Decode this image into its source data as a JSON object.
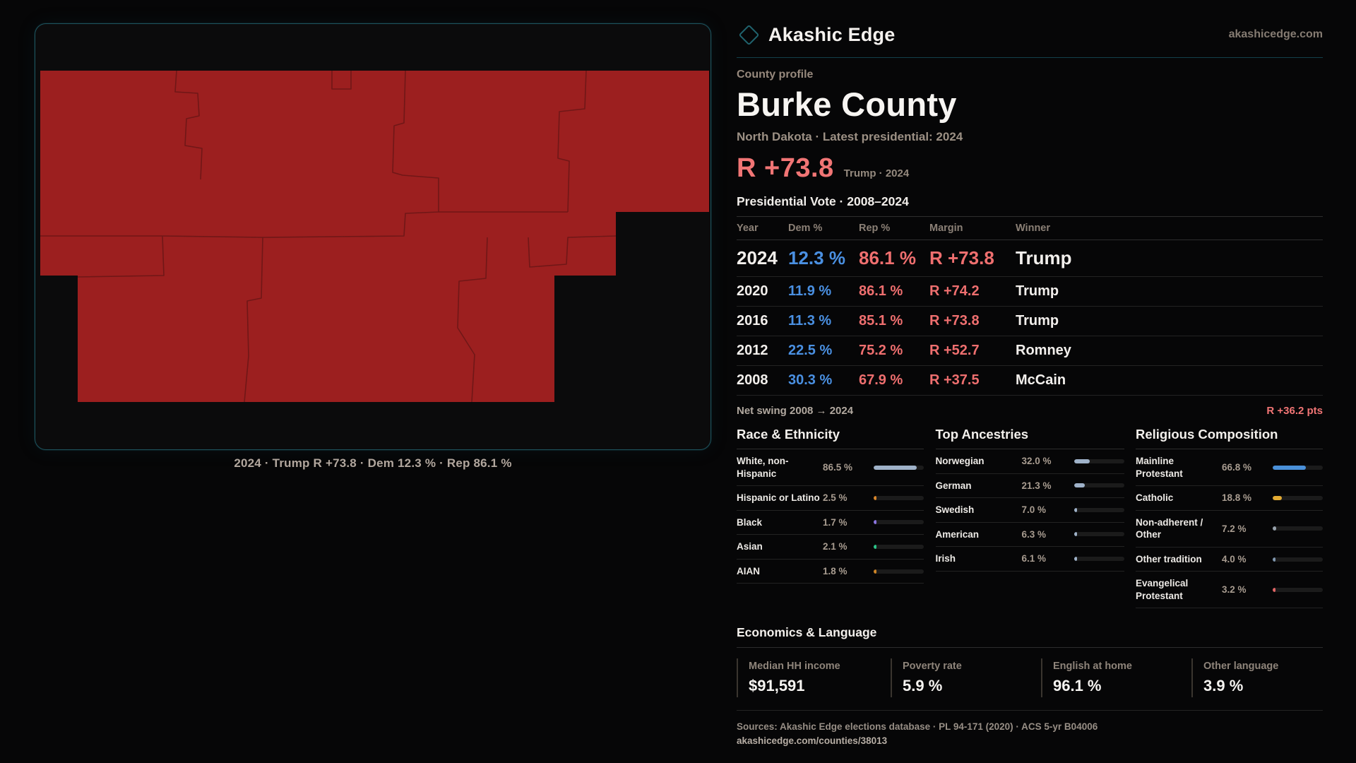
{
  "brand": {
    "name": "Akashic Edge",
    "domain": "akashicedge.com"
  },
  "header": {
    "eyebrow": "County profile",
    "title": "Burke County",
    "subtitle": "North Dakota · Latest presidential: 2024"
  },
  "headline": {
    "margin": "R +73.8",
    "note": "Trump · 2024"
  },
  "map": {
    "caption": "2024 · Trump R +73.8 · Dem 12.3 % · Rep 86.1 %",
    "fill_color": "#9c1f1f",
    "boundary_color": "#701717",
    "panel_border_color": "#1e525c"
  },
  "vote_table": {
    "title": "Presidential Vote · 2008–2024",
    "columns": [
      "Year",
      "Dem %",
      "Rep %",
      "Margin",
      "Winner"
    ],
    "rows": [
      {
        "year": "2024",
        "dem": "12.3 %",
        "rep": "86.1 %",
        "margin": "R +73.8",
        "winner": "Trump"
      },
      {
        "year": "2020",
        "dem": "11.9 %",
        "rep": "86.1 %",
        "margin": "R +74.2",
        "winner": "Trump"
      },
      {
        "year": "2016",
        "dem": "11.3 %",
        "rep": "85.1 %",
        "margin": "R +73.8",
        "winner": "Trump"
      },
      {
        "year": "2012",
        "dem": "22.5 %",
        "rep": "75.2 %",
        "margin": "R +52.7",
        "winner": "Romney"
      },
      {
        "year": "2008",
        "dem": "30.3 %",
        "rep": "67.9 %",
        "margin": "R +37.5",
        "winner": "McCain"
      }
    ],
    "net_swing_label": "Net swing 2008 → 2024",
    "net_swing_value": "R +36.2 pts"
  },
  "demographics": [
    {
      "key": "race",
      "title": "Race & Ethnicity",
      "rows": [
        {
          "label": "White, non-Hispanic",
          "value": "86.5 %",
          "pct": 86.5,
          "color": "#9fb2c9"
        },
        {
          "label": "Hispanic or Latino",
          "value": "2.5 %",
          "pct": 2.5,
          "color": "#d9862b"
        },
        {
          "label": "Black",
          "value": "1.7 %",
          "pct": 1.7,
          "color": "#8b74e0"
        },
        {
          "label": "Asian",
          "value": "2.1 %",
          "pct": 2.1,
          "color": "#2bc488"
        },
        {
          "label": "AIAN",
          "value": "1.8 %",
          "pct": 1.8,
          "color": "#cd8426"
        }
      ]
    },
    {
      "key": "ancestries",
      "title": "Top Ancestries",
      "rows": [
        {
          "label": "Norwegian",
          "value": "32.0 %",
          "pct": 32.0,
          "color": "#9fb2c9"
        },
        {
          "label": "German",
          "value": "21.3 %",
          "pct": 21.3,
          "color": "#9fb2c9"
        },
        {
          "label": "Swedish",
          "value": "7.0 %",
          "pct": 7.0,
          "color": "#9fb2c9"
        },
        {
          "label": "American",
          "value": "6.3 %",
          "pct": 6.3,
          "color": "#9fb2c9"
        },
        {
          "label": "Irish",
          "value": "6.1 %",
          "pct": 6.1,
          "color": "#9fb2c9"
        }
      ]
    },
    {
      "key": "religion",
      "title": "Religious Composition",
      "rows": [
        {
          "label": "Mainline Protestant",
          "value": "66.8 %",
          "pct": 66.8,
          "color": "#4a90d9"
        },
        {
          "label": "Catholic",
          "value": "18.8 %",
          "pct": 18.8,
          "color": "#e3ab33"
        },
        {
          "label": "Non-adherent / Other",
          "value": "7.2 %",
          "pct": 7.2,
          "color": "#97a1ab"
        },
        {
          "label": "Other tradition",
          "value": "4.0 %",
          "pct": 4.0,
          "color": "#7f96ae"
        },
        {
          "label": "Evangelical Protestant",
          "value": "3.2 %",
          "pct": 3.2,
          "color": "#e26565"
        }
      ]
    }
  ],
  "economics": {
    "title": "Economics & Language",
    "stats": [
      {
        "label": "Median HH income",
        "value": "$91,591"
      },
      {
        "label": "Poverty rate",
        "value": "5.9 %"
      },
      {
        "label": "English at home",
        "value": "96.1 %"
      },
      {
        "label": "Other language",
        "value": "3.9 %"
      }
    ]
  },
  "footer": {
    "sources": "Sources: Akashic Edge elections database · PL 94-171 (2020) · ACS 5-yr B04006",
    "permalink": "akashicedge.com/counties/38013"
  }
}
